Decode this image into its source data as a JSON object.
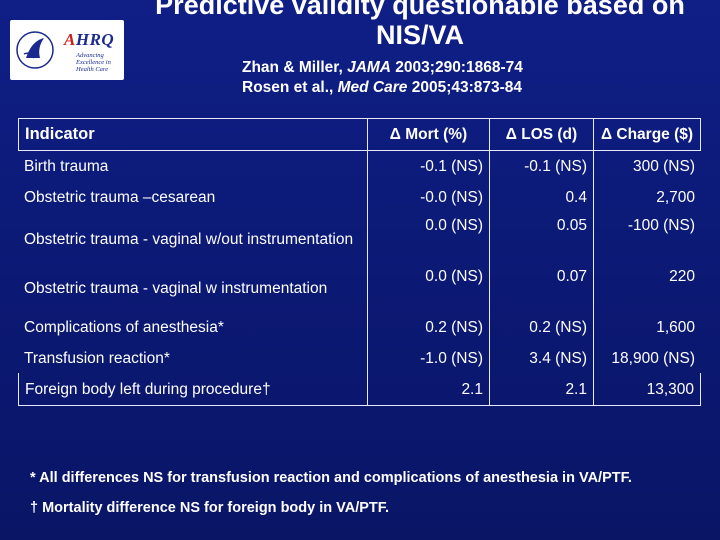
{
  "logo": {
    "agency_mark": "HHS",
    "wordmark": "AHRQ",
    "tagline": "Advancing Excellence in Health Care"
  },
  "title": "Predictive validity questionable based on NIS/VA",
  "references": [
    {
      "authors": "Zhan & Miller, ",
      "journal": "JAMA",
      "details": " 2003;290:1868-74"
    },
    {
      "authors": "Rosen et al., ",
      "journal": "Med Care",
      "details": " 2005;43:873-84"
    }
  ],
  "table": {
    "headers": [
      "Indicator",
      "Δ Mort (%)",
      "Δ LOS (d)",
      "Δ Charge ($)"
    ],
    "rows": [
      {
        "indicator": "Birth trauma",
        "mort": "-0.1 (NS)",
        "los": "-0.1 (NS)",
        "charge": "300 (NS)"
      },
      {
        "indicator": "Obstetric trauma –cesarean",
        "mort": "-0.0 (NS)",
        "los": "0.4",
        "charge": "2,700"
      },
      {
        "indicator": "Obstetric trauma - vaginal w/out instrumentation",
        "mort": "0.0 (NS)",
        "los": "0.05",
        "charge": "-100 (NS)"
      },
      {
        "indicator": "Obstetric trauma - vaginal w instrumentation",
        "mort": "0.0 (NS)",
        "los": "0.07",
        "charge": "220"
      },
      {
        "indicator": "Complications of anesthesia*",
        "mort": "0.2 (NS)",
        "los": "0.2 (NS)",
        "charge": "1,600"
      },
      {
        "indicator": "Transfusion reaction*",
        "mort": "-1.0 (NS)",
        "los": "3.4 (NS)",
        "charge": "18,900 (NS)"
      },
      {
        "indicator": "Foreign body left during procedure†",
        "mort": "2.1",
        "los": "2.1",
        "charge": "13,300"
      }
    ]
  },
  "footnotes": [
    "* All differences NS for transfusion reaction and complications of anesthesia in VA/PTF.",
    "† Mortality difference NS for foreign body in VA/PTF."
  ],
  "colors": {
    "background": "#0f1f86",
    "text": "#ffffff",
    "logo_blue": "#1a2a8f",
    "logo_red": "#c8201f"
  }
}
